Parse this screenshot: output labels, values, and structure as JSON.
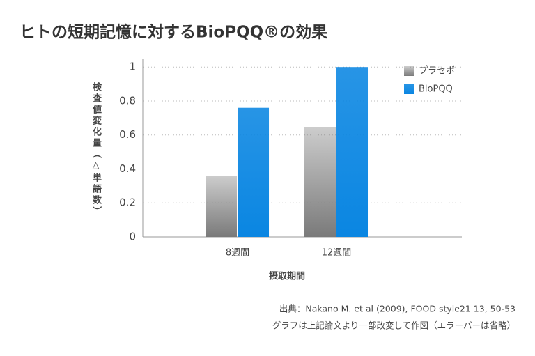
{
  "chart_data": {
    "type": "bar",
    "title": "ヒトの短期記憶に対するBioPQQ®の効果",
    "y_label": "検査値変化量（△単語数）",
    "x_label": "摂取期間",
    "categories": [
      "8週間",
      "12週間"
    ],
    "series": [
      {
        "name": "プラセボ",
        "color": "#7a7a7a",
        "values": [
          0.36,
          0.645
        ]
      },
      {
        "name": "BioPQQ",
        "color": "#0a86e2",
        "values": [
          0.76,
          1.0
        ]
      }
    ],
    "ylim": [
      0,
      1.05
    ],
    "yticks": [
      0,
      0.2,
      0.4,
      0.6,
      0.8,
      1
    ],
    "grid": true,
    "legend": "top-right",
    "notes": [
      "出典：Nakano M. et al (2009), FOOD style21 13, 50-53",
      "グラフは上記論文より一部改変して作図（エラーバーは省略）"
    ]
  }
}
